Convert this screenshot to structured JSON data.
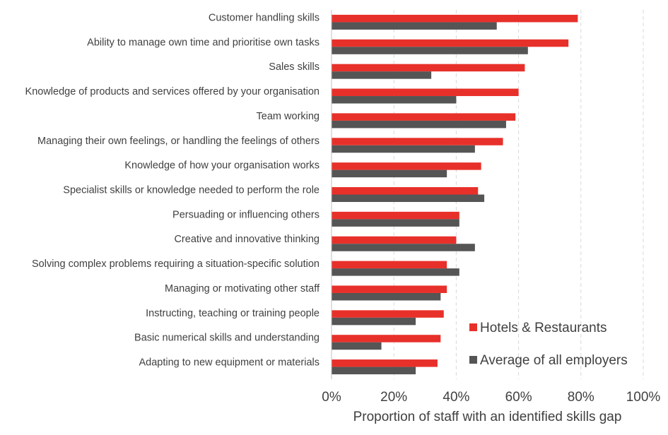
{
  "chart_data": {
    "type": "bar",
    "orientation": "horizontal",
    "categories": [
      "Customer handling skills",
      "Ability to manage own time and prioritise own tasks",
      "Sales skills",
      "Knowledge of products and services offered by your organisation",
      "Team working",
      "Managing their own feelings, or handling the feelings of others",
      "Knowledge of how your organisation works",
      "Specialist skills or knowledge needed to perform the role",
      "Persuading or influencing others",
      "Creative and innovative thinking",
      "Solving complex problems requiring a situation-specific solution",
      "Managing or motivating other staff",
      "Instructing, teaching or training people",
      "Basic numerical skills and understanding",
      "Adapting to new equipment or materials"
    ],
    "series": [
      {
        "name": "Hotels & Restaurants",
        "color": "#e8302a",
        "values": [
          79,
          76,
          62,
          60,
          59,
          55,
          48,
          47,
          41,
          40,
          37,
          37,
          36,
          35,
          34
        ]
      },
      {
        "name": "Average of all employers",
        "color": "#555555",
        "values": [
          53,
          63,
          32,
          40,
          56,
          46,
          37,
          49,
          41,
          46,
          41,
          35,
          27,
          16,
          27
        ]
      }
    ],
    "xlim": [
      0,
      100
    ],
    "x_ticks": [
      "0%",
      "20%",
      "40%",
      "60%",
      "80%",
      "100%"
    ],
    "x_tick_values": [
      0,
      20,
      40,
      60,
      80,
      100
    ],
    "xlabel": "Proportion of staff with an identified skills gap",
    "ylabel": "",
    "title": "",
    "grid": "vertical dashed",
    "legend_position": "bottom-right"
  }
}
